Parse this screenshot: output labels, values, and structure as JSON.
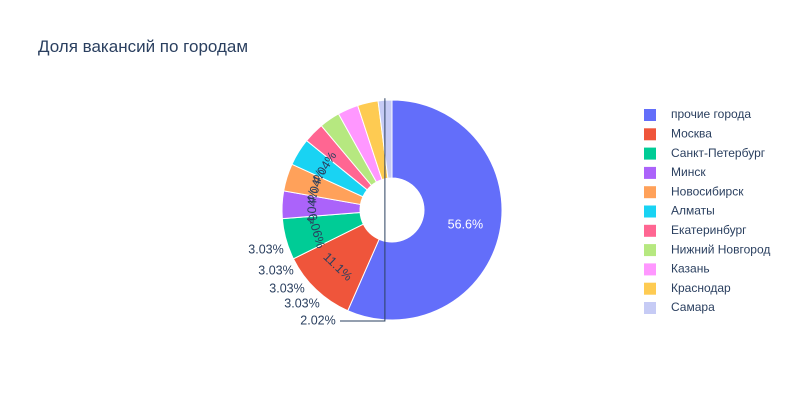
{
  "chart_data": {
    "type": "pie",
    "hole": true,
    "title": "Доля вакансий по городам",
    "legend_position": "right",
    "slices": [
      {
        "label": "прочие города",
        "value": 56.6,
        "text": "56.6%",
        "color": "#636efa"
      },
      {
        "label": "Москва",
        "value": 11.1,
        "text": "11.1%",
        "color": "#ef553b"
      },
      {
        "label": "Санкт-Петербург",
        "value": 6.06,
        "text": "6.06%",
        "color": "#00cc96"
      },
      {
        "label": "Минск",
        "value": 4.04,
        "text": "4.04%",
        "color": "#ab63fa"
      },
      {
        "label": "Новосибирск",
        "value": 4.04,
        "text": "4.04%",
        "color": "#ffa15a"
      },
      {
        "label": "Алматы",
        "value": 4.04,
        "text": "4.04%",
        "color": "#19d3f3"
      },
      {
        "label": "Екатеринбург",
        "value": 3.03,
        "text": "3.03%",
        "color": "#ff6692"
      },
      {
        "label": "Нижний Новгород",
        "value": 3.03,
        "text": "3.03%",
        "color": "#b6e880"
      },
      {
        "label": "Казань",
        "value": 3.03,
        "text": "3.03%",
        "color": "#ff97ff"
      },
      {
        "label": "Краснодар",
        "value": 3.03,
        "text": "3.03%",
        "color": "#fecb52"
      },
      {
        "label": "Самара",
        "value": 2.02,
        "text": "2.02%",
        "color": "#c6cbf5"
      }
    ]
  }
}
